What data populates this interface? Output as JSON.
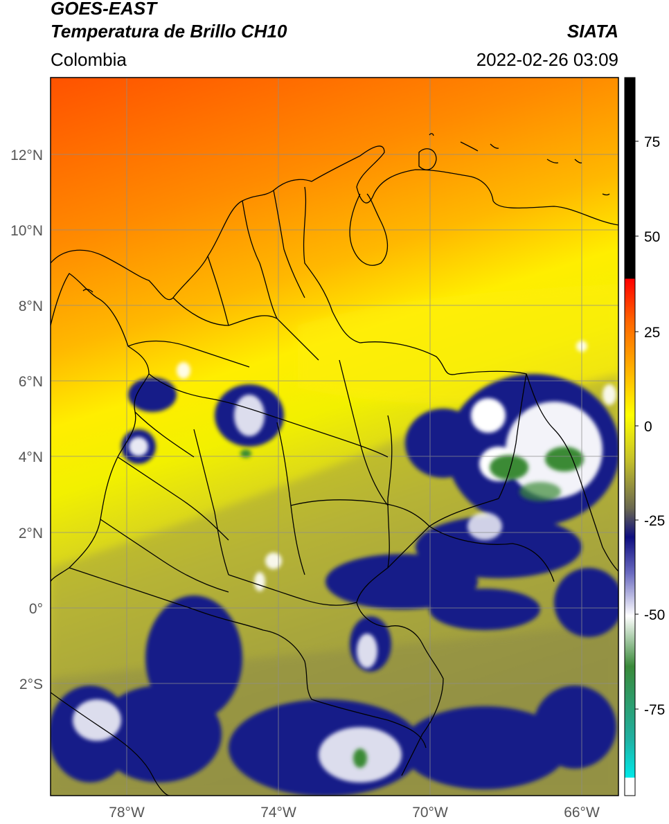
{
  "header": {
    "title_line1": "GOES-EAST",
    "title_line2": "Temperatura de Brillo CH10",
    "brand": "SIATA",
    "region": "Colombia",
    "timestamp": "2022-02-26 03:09"
  },
  "map": {
    "lat_labels": [
      "12°N",
      "10°N",
      "8°N",
      "6°N",
      "4°N",
      "2°N",
      "0°",
      "2°S"
    ],
    "lon_labels": [
      "78°W",
      "74°W",
      "70°W",
      "66°W"
    ],
    "colors": {
      "warm_top": "#ff5a00",
      "orange": "#ff9900",
      "yellow": "#ffff00",
      "olive": "#b7b32a",
      "dark_olive": "#7d7a40",
      "navy": "#111f8a",
      "white": "#ffffff",
      "green": "#3a8a3a",
      "grid": "#8c8c8c",
      "border": "#000000"
    }
  },
  "colorbar": {
    "tick_labels": [
      "75",
      "50",
      "25",
      "0",
      "-25",
      "-50",
      "-75"
    ],
    "colors": [
      "#ffffff",
      "#00e5e5",
      "#2a9a6a",
      "#4a8a2a",
      "#ffffff",
      "#1a1a8a",
      "#8a8a50",
      "#e8e820",
      "#ffff00",
      "#ff9900",
      "#ff0000",
      "#000000"
    ]
  }
}
